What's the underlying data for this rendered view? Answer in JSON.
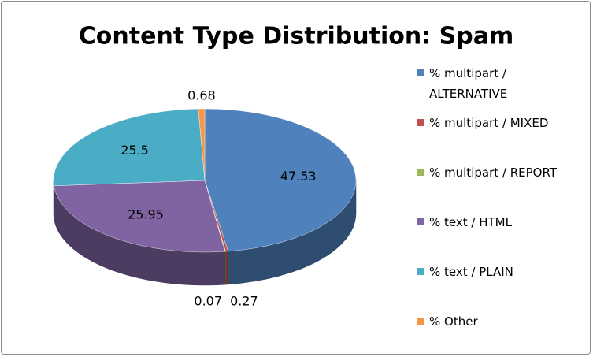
{
  "chart_data": {
    "type": "pie",
    "title": "Content Type Distribution: Spam",
    "categories": [
      "% multipart / ALTERNATIVE",
      "% multipart / MIXED",
      "% multipart / REPORT",
      "% text / HTML",
      "% text / PLAIN",
      "% Other"
    ],
    "values": [
      47.53,
      0.27,
      0.07,
      25.95,
      25.5,
      0.68
    ],
    "colors": [
      "#4f81bd",
      "#c0504d",
      "#9bbb59",
      "#8064a2",
      "#4bacc6",
      "#f79646"
    ],
    "legend": "right"
  }
}
